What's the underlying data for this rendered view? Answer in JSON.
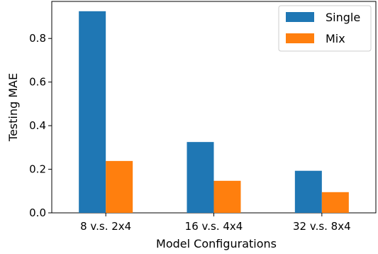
{
  "chart_data": {
    "type": "bar",
    "categories": [
      "8 v.s. 2x4",
      "16 v.s. 4x4",
      "32 v.s. 8x4"
    ],
    "series": [
      {
        "name": "Single",
        "values": [
          0.925,
          0.325,
          0.193
        ],
        "color": "#1f77b4"
      },
      {
        "name": "Mix",
        "values": [
          0.238,
          0.147,
          0.095
        ],
        "color": "#ff7f0e"
      }
    ],
    "xlabel": "Model Configurations",
    "ylabel": "Testing MAE",
    "ylim": [
      0,
      0.97
    ],
    "yticks": [
      0.0,
      0.2,
      0.4,
      0.6,
      0.8
    ],
    "ytick_labels": [
      "0.0",
      "0.2",
      "0.4",
      "0.6",
      "0.8"
    ],
    "legend_position": "top-right",
    "grid": false
  }
}
